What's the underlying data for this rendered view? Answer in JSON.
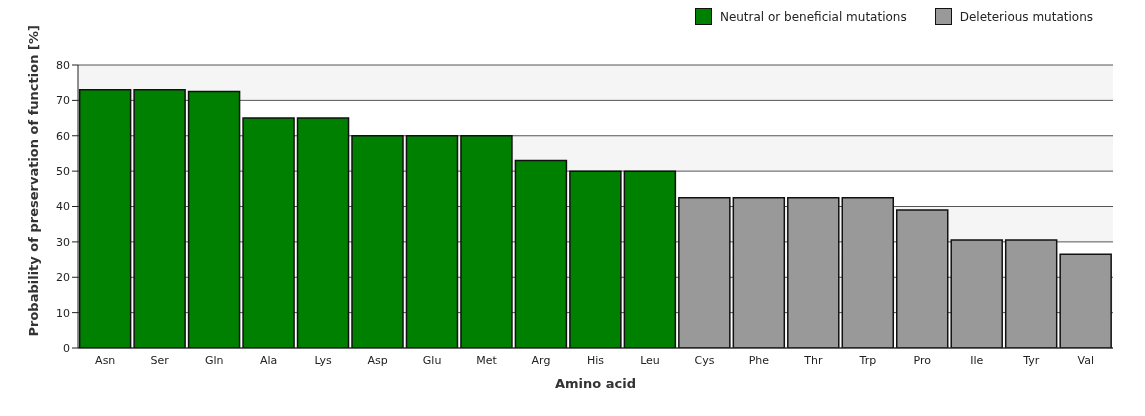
{
  "chart_data": {
    "type": "bar",
    "xlabel": "Amino acid",
    "ylabel": "Probability of preservation of function [%]",
    "categories": [
      "Asn",
      "Ser",
      "Gln",
      "Ala",
      "Lys",
      "Asp",
      "Glu",
      "Met",
      "Arg",
      "His",
      "Leu",
      "Cys",
      "Phe",
      "Thr",
      "Trp",
      "Pro",
      "Ile",
      "Tyr",
      "Val"
    ],
    "series": [
      {
        "name": "Neutral or beneficial mutations",
        "color": "#008000",
        "values": [
          73,
          73,
          72.5,
          65,
          65,
          60,
          60,
          60,
          53,
          50,
          50,
          null,
          null,
          null,
          null,
          null,
          null,
          null,
          null
        ]
      },
      {
        "name": "Deleterious mutations",
        "color": "#999999",
        "values": [
          null,
          null,
          null,
          null,
          null,
          null,
          null,
          null,
          null,
          null,
          null,
          42.5,
          42.5,
          42.5,
          42.5,
          39,
          30.5,
          30.5,
          26.5
        ]
      }
    ],
    "stacked": true,
    "ylim": [
      0,
      80
    ],
    "yticks": [
      0,
      10,
      20,
      30,
      40,
      50,
      60,
      70,
      80
    ],
    "grid": "y",
    "legend": "top right"
  }
}
